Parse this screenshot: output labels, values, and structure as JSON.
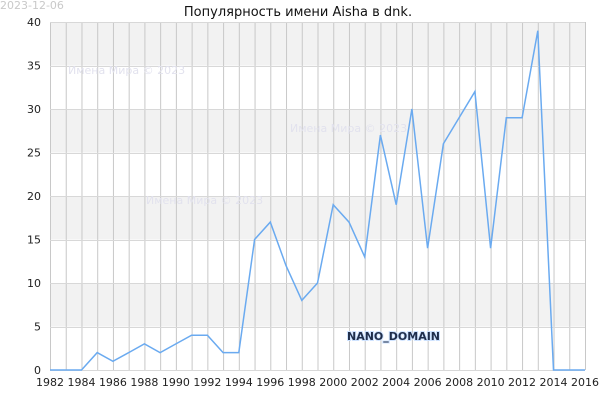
{
  "header": {
    "date_stamp": "2023-12-06",
    "title": "Популярность имени Aisha в dnk."
  },
  "watermarks": [
    "Имена Мира © 2023",
    "Имена Мира © 2023",
    "Имена Мира © 2023"
  ],
  "brand_label": "NANO_DOMAIN",
  "colors": {
    "line": "#6aaaf0",
    "band": "#f2f2f2",
    "grid": "#c8c8c8"
  },
  "chart_data": {
    "type": "line",
    "title": "Популярность имени Aisha в dnk.",
    "xlabel": "",
    "ylabel": "",
    "xlim": [
      1982,
      2016
    ],
    "ylim": [
      0,
      40
    ],
    "grid": true,
    "x_ticks": [
      "1982",
      "1984",
      "1986",
      "1988",
      "1990",
      "1992",
      "1994",
      "1996",
      "1998",
      "2000",
      "2002",
      "2004",
      "2006",
      "2008",
      "2010",
      "2012",
      "2014",
      "2016"
    ],
    "y_ticks": [
      "0",
      "5",
      "10",
      "15",
      "20",
      "25",
      "30",
      "35",
      "40"
    ],
    "x": [
      1982,
      1983,
      1984,
      1985,
      1986,
      1987,
      1988,
      1989,
      1990,
      1991,
      1992,
      1993,
      1994,
      1995,
      1996,
      1997,
      1998,
      1999,
      2000,
      2001,
      2002,
      2003,
      2004,
      2005,
      2006,
      2007,
      2008,
      2009,
      2010,
      2011,
      2012,
      2013,
      2014,
      2015,
      2016
    ],
    "y": [
      0,
      0,
      0,
      2,
      1,
      2,
      3,
      2,
      3,
      4,
      4,
      2,
      2,
      15,
      17,
      12,
      8,
      10,
      19,
      17,
      13,
      27,
      19,
      30,
      14,
      26,
      29,
      32,
      14,
      29,
      29,
      39,
      0,
      0,
      0
    ]
  }
}
